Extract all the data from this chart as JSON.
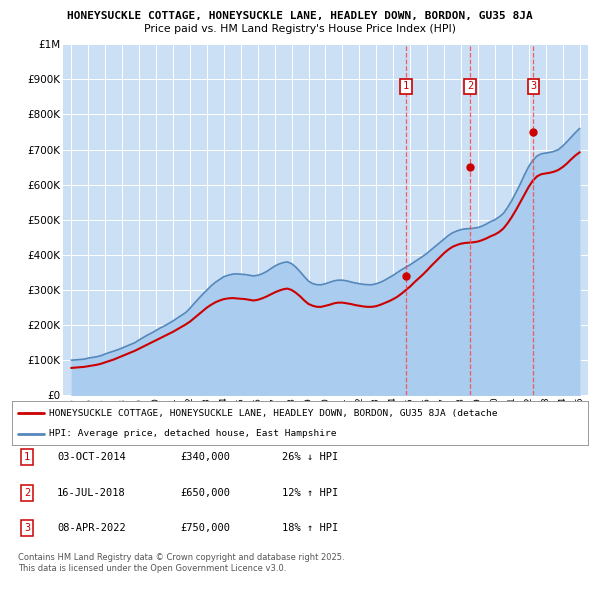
{
  "title1": "HONEYSUCKLE COTTAGE, HONEYSUCKLE LANE, HEADLEY DOWN, BORDON, GU35 8JA",
  "title2": "Price paid vs. HM Land Registry's House Price Index (HPI)",
  "legend_line1": "HONEYSUCKLE COTTAGE, HONEYSUCKLE LANE, HEADLEY DOWN, BORDON, GU35 8JA (detache",
  "legend_line2": "HPI: Average price, detached house, East Hampshire",
  "footer1": "Contains HM Land Registry data © Crown copyright and database right 2025.",
  "footer2": "This data is licensed under the Open Government Licence v3.0.",
  "purchases": [
    {
      "num": 1,
      "date": "03-OCT-2014",
      "price": 340000,
      "pct": "26%",
      "dir": "↓",
      "year": 2014.75
    },
    {
      "num": 2,
      "date": "16-JUL-2018",
      "price": 650000,
      "pct": "12%",
      "dir": "↑",
      "year": 2018.54
    },
    {
      "num": 3,
      "date": "08-APR-2022",
      "price": 750000,
      "pct": "18%",
      "dir": "↑",
      "year": 2022.27
    }
  ],
  "hpi_x": [
    1995.0,
    1995.25,
    1995.5,
    1995.75,
    1996.0,
    1996.25,
    1996.5,
    1996.75,
    1997.0,
    1997.25,
    1997.5,
    1997.75,
    1998.0,
    1998.25,
    1998.5,
    1998.75,
    1999.0,
    1999.25,
    1999.5,
    1999.75,
    2000.0,
    2000.25,
    2000.5,
    2000.75,
    2001.0,
    2001.25,
    2001.5,
    2001.75,
    2002.0,
    2002.25,
    2002.5,
    2002.75,
    2003.0,
    2003.25,
    2003.5,
    2003.75,
    2004.0,
    2004.25,
    2004.5,
    2004.75,
    2005.0,
    2005.25,
    2005.5,
    2005.75,
    2006.0,
    2006.25,
    2006.5,
    2006.75,
    2007.0,
    2007.25,
    2007.5,
    2007.75,
    2008.0,
    2008.25,
    2008.5,
    2008.75,
    2009.0,
    2009.25,
    2009.5,
    2009.75,
    2010.0,
    2010.25,
    2010.5,
    2010.75,
    2011.0,
    2011.25,
    2011.5,
    2011.75,
    2012.0,
    2012.25,
    2012.5,
    2012.75,
    2013.0,
    2013.25,
    2013.5,
    2013.75,
    2014.0,
    2014.25,
    2014.5,
    2014.75,
    2015.0,
    2015.25,
    2015.5,
    2015.75,
    2016.0,
    2016.25,
    2016.5,
    2016.75,
    2017.0,
    2017.25,
    2017.5,
    2017.75,
    2018.0,
    2018.25,
    2018.5,
    2018.75,
    2019.0,
    2019.25,
    2019.5,
    2019.75,
    2020.0,
    2020.25,
    2020.5,
    2020.75,
    2021.0,
    2021.25,
    2021.5,
    2021.75,
    2022.0,
    2022.25,
    2022.5,
    2022.75,
    2023.0,
    2023.25,
    2023.5,
    2023.75,
    2024.0,
    2024.25,
    2024.5,
    2024.75,
    2025.0
  ],
  "hpi_y": [
    100000,
    101000,
    102000,
    103000,
    106000,
    108000,
    110000,
    113000,
    118000,
    122000,
    126000,
    130000,
    135000,
    140000,
    145000,
    150000,
    158000,
    165000,
    172000,
    178000,
    185000,
    192000,
    198000,
    205000,
    212000,
    220000,
    228000,
    236000,
    248000,
    262000,
    275000,
    288000,
    300000,
    312000,
    322000,
    330000,
    338000,
    342000,
    345000,
    346000,
    345000,
    344000,
    342000,
    340000,
    342000,
    346000,
    352000,
    360000,
    368000,
    374000,
    378000,
    380000,
    375000,
    365000,
    352000,
    338000,
    325000,
    318000,
    315000,
    315000,
    318000,
    322000,
    326000,
    328000,
    328000,
    326000,
    323000,
    320000,
    318000,
    316000,
    315000,
    315000,
    318000,
    322000,
    328000,
    335000,
    342000,
    350000,
    358000,
    365000,
    372000,
    380000,
    388000,
    396000,
    405000,
    415000,
    425000,
    435000,
    445000,
    455000,
    463000,
    468000,
    472000,
    474000,
    475000,
    476000,
    478000,
    482000,
    488000,
    495000,
    500000,
    508000,
    518000,
    535000,
    555000,
    578000,
    602000,
    628000,
    652000,
    670000,
    682000,
    688000,
    690000,
    692000,
    695000,
    700000,
    710000,
    722000,
    735000,
    748000,
    760000
  ],
  "red_x": [
    1995.0,
    1995.25,
    1995.5,
    1995.75,
    1996.0,
    1996.25,
    1996.5,
    1996.75,
    1997.0,
    1997.25,
    1997.5,
    1997.75,
    1998.0,
    1998.25,
    1998.5,
    1998.75,
    1999.0,
    1999.25,
    1999.5,
    1999.75,
    2000.0,
    2000.25,
    2000.5,
    2000.75,
    2001.0,
    2001.25,
    2001.5,
    2001.75,
    2002.0,
    2002.25,
    2002.5,
    2002.75,
    2003.0,
    2003.25,
    2003.5,
    2003.75,
    2004.0,
    2004.25,
    2004.5,
    2004.75,
    2005.0,
    2005.25,
    2005.5,
    2005.75,
    2006.0,
    2006.25,
    2006.5,
    2006.75,
    2007.0,
    2007.25,
    2007.5,
    2007.75,
    2008.0,
    2008.25,
    2008.5,
    2008.75,
    2009.0,
    2009.25,
    2009.5,
    2009.75,
    2010.0,
    2010.25,
    2010.5,
    2010.75,
    2011.0,
    2011.25,
    2011.5,
    2011.75,
    2012.0,
    2012.25,
    2012.5,
    2012.75,
    2013.0,
    2013.25,
    2013.5,
    2013.75,
    2014.0,
    2014.25,
    2014.5,
    2014.75,
    2015.0,
    2015.25,
    2015.5,
    2015.75,
    2016.0,
    2016.25,
    2016.5,
    2016.75,
    2017.0,
    2017.25,
    2017.5,
    2017.75,
    2018.0,
    2018.25,
    2018.5,
    2018.75,
    2019.0,
    2019.25,
    2019.5,
    2019.75,
    2020.0,
    2020.25,
    2020.5,
    2020.75,
    2021.0,
    2021.25,
    2021.5,
    2021.75,
    2022.0,
    2022.25,
    2022.5,
    2022.75,
    2023.0,
    2023.25,
    2023.5,
    2023.75,
    2024.0,
    2024.25,
    2024.5,
    2024.75,
    2025.0
  ],
  "red_y": [
    78000,
    79000,
    80000,
    81000,
    83000,
    85000,
    87000,
    90000,
    94000,
    98000,
    102000,
    107000,
    112000,
    117000,
    122000,
    127000,
    133000,
    139000,
    145000,
    151000,
    157000,
    163000,
    169000,
    175000,
    181000,
    188000,
    195000,
    202000,
    210000,
    220000,
    230000,
    240000,
    250000,
    258000,
    265000,
    270000,
    274000,
    276000,
    277000,
    276000,
    275000,
    274000,
    272000,
    270000,
    272000,
    276000,
    281000,
    287000,
    293000,
    298000,
    302000,
    304000,
    300000,
    292000,
    282000,
    270000,
    260000,
    255000,
    252000,
    252000,
    255000,
    258000,
    262000,
    264000,
    264000,
    262000,
    260000,
    257000,
    255000,
    253000,
    252000,
    252000,
    254000,
    258000,
    263000,
    268000,
    274000,
    281000,
    290000,
    300000,
    310000,
    322000,
    333000,
    344000,
    356000,
    369000,
    381000,
    393000,
    405000,
    415000,
    423000,
    428000,
    432000,
    434000,
    435000,
    436000,
    438000,
    442000,
    447000,
    453000,
    458000,
    465000,
    475000,
    490000,
    508000,
    528000,
    550000,
    572000,
    594000,
    612000,
    624000,
    630000,
    632000,
    634000,
    637000,
    642000,
    650000,
    660000,
    672000,
    683000,
    692000
  ],
  "ylim": [
    0,
    1000000
  ],
  "yticks": [
    0,
    100000,
    200000,
    300000,
    400000,
    500000,
    600000,
    700000,
    800000,
    900000,
    1000000
  ],
  "ytick_labels": [
    "£0",
    "£100K",
    "£200K",
    "£300K",
    "£400K",
    "£500K",
    "£600K",
    "£700K",
    "£800K",
    "£900K",
    "£1M"
  ],
  "bg_color": "#ffffff",
  "plot_bg_color": "#cce0f5",
  "grid_color": "#ffffff",
  "red_color": "#cc0000",
  "blue_color": "#5588bb",
  "blue_fill_color": "#aaccee",
  "vline_color": "#ff4444",
  "purchase_box_color": "#cc0000"
}
